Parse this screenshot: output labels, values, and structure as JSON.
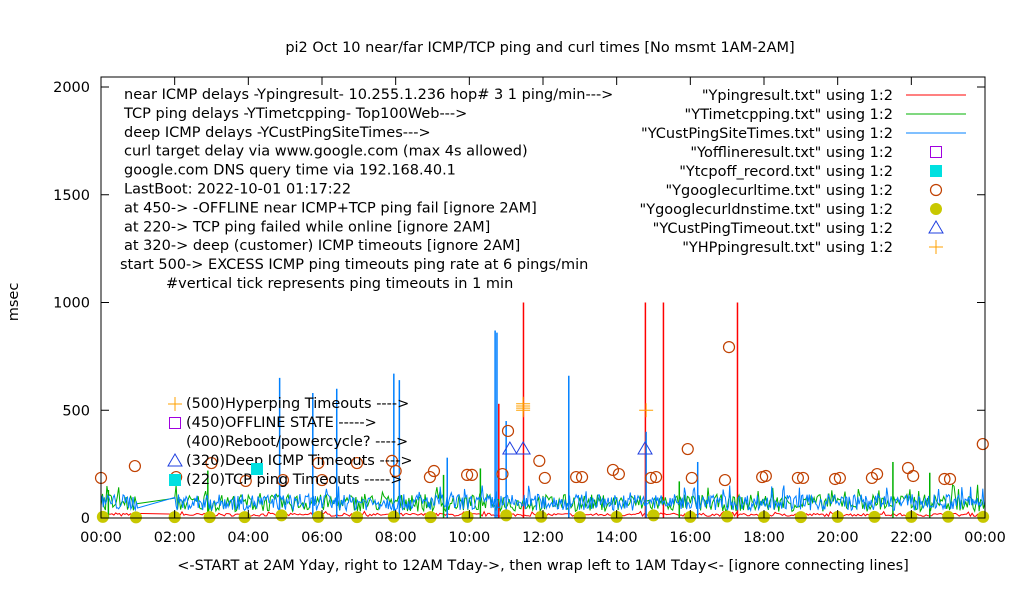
{
  "chart_data": {
    "type": "line",
    "title": "pi2  Oct 10  near/far ICMP/TCP ping and curl times [No msmt 1AM-2AM]",
    "xlabel": "<-START at 2AM Yday, right to 12AM Tday->, then wrap left to 1AM Tday<- [ignore connecting lines]",
    "ylabel": "msec",
    "xlim_hours": [
      0,
      24
    ],
    "ylim": [
      0,
      2000
    ],
    "x_ticks": [
      "00:00",
      "02:00",
      "04:00",
      "06:00",
      "08:00",
      "10:00",
      "12:00",
      "14:00",
      "16:00",
      "18:00",
      "20:00",
      "22:00",
      "00:00"
    ],
    "y_ticks": [
      0,
      500,
      1000,
      1500,
      2000
    ],
    "annotations_top": [
      "near ICMP delays -Ypingresult- 10.255.1.236 hop# 3 1 ping/min--->",
      "TCP ping delays -YTimetcpping- Top100Web--->",
      "deep ICMP delays -YCustPingSiteTimes--->",
      "curl target delay via www.google.com (max 4s allowed)",
      "google.com DNS query time via 192.168.40.1",
      "LastBoot: 2022-10-01 01:17:22",
      "at 450-> -OFFLINE near ICMP+TCP ping fail [ignore 2AM]",
      "at 220-> TCP ping failed while online [ignore 2AM]",
      "at 320-> deep (customer) ICMP timeouts [ignore 2AM]",
      "start 500-> EXCESS ICMP ping timeouts ping rate at 6 pings/min",
      "#vertical tick represents ping timeouts in 1 min"
    ],
    "annotations_low": [
      "(500)Hyperping Timeouts ---->",
      "(450)OFFLINE STATE ----->",
      "(400)Reboot/powercycle? ---->",
      "(320)Deep ICMP Timeouts ---->",
      "(220)TCP ping Timeouts ----->"
    ],
    "legend_position": "top-right",
    "legend": [
      {
        "label": "\"Ypingresult.txt\" using 1:2",
        "style": "line",
        "color": "#ff0000"
      },
      {
        "label": "\"YTimetcpping.txt\" using 1:2",
        "style": "line",
        "color": "#00b000"
      },
      {
        "label": "\"YCustPingSiteTimes.txt\" using 1:2",
        "style": "line",
        "color": "#0080ff"
      },
      {
        "label": "\"Yofflineresult.txt\" using 1:2",
        "style": "square",
        "color": "#a000e0"
      },
      {
        "label": "\"Ytcpoff_record.txt\" using 1:2",
        "style": "filled-square",
        "color": "#00e0e0"
      },
      {
        "label": "\"Ygooglecurltime.txt\" using 1:2",
        "style": "circle",
        "color": "#c04000"
      },
      {
        "label": "\"Ygooglecurldnstime.txt\" using 1:2",
        "style": "filled-circle",
        "color": "#c8c800"
      },
      {
        "label": "\"YCustPingTimeout.txt\" using 1:2",
        "style": "triangle",
        "color": "#2040e0"
      },
      {
        "label": "\"YHPpingresult.txt\" using 1:2",
        "style": "plus",
        "color": "#ffa000"
      }
    ],
    "series": {
      "near_icmp": {
        "baseline_ms": [
          8,
          22
        ],
        "spikes": [
          [
            10.8,
            530
          ],
          [
            11.47,
            1000
          ],
          [
            14.78,
            1000
          ],
          [
            15.27,
            1000
          ],
          [
            17.28,
            1000
          ],
          [
            12.7,
            120
          ]
        ]
      },
      "tcp_ping": {
        "baseline_ms": [
          30,
          110
        ],
        "spikes": [
          [
            0.2,
            130
          ],
          [
            2.9,
            220
          ],
          [
            9.3,
            200
          ],
          [
            10.3,
            230
          ],
          [
            12.7,
            220
          ],
          [
            15.7,
            170
          ],
          [
            21.5,
            260
          ],
          [
            22.5,
            210
          ]
        ]
      },
      "deep_icmp": {
        "baseline_ms": [
          35,
          110
        ],
        "spikes": [
          [
            4.85,
            650
          ],
          [
            6.4,
            600
          ],
          [
            7.95,
            670
          ],
          [
            5.75,
            580
          ],
          [
            8.1,
            640
          ],
          [
            10.7,
            870
          ],
          [
            10.75,
            860
          ],
          [
            12.7,
            660
          ],
          [
            11.0,
            450
          ],
          [
            9.4,
            280
          ],
          [
            14.8,
            400
          ],
          [
            16.2,
            260
          ]
        ]
      },
      "curl": [
        [
          0.0,
          186
        ],
        [
          0.92,
          241
        ],
        [
          2.04,
          190
        ],
        [
          3.0,
          255
        ],
        [
          3.93,
          172
        ],
        [
          4.94,
          176
        ],
        [
          5.9,
          255
        ],
        [
          6.0,
          176
        ],
        [
          6.95,
          255
        ],
        [
          7.9,
          265
        ],
        [
          8.0,
          218
        ],
        [
          8.93,
          190
        ],
        [
          9.04,
          218
        ],
        [
          9.94,
          200
        ],
        [
          10.07,
          200
        ],
        [
          10.9,
          204
        ],
        [
          11.05,
          404
        ],
        [
          11.9,
          265
        ],
        [
          12.05,
          186
        ],
        [
          12.9,
          190
        ],
        [
          13.06,
          190
        ],
        [
          13.9,
          223
        ],
        [
          14.06,
          204
        ],
        [
          14.93,
          186
        ],
        [
          15.07,
          190
        ],
        [
          15.93,
          320
        ],
        [
          16.04,
          186
        ],
        [
          16.94,
          176
        ],
        [
          17.05,
          793
        ],
        [
          17.95,
          190
        ],
        [
          18.05,
          195
        ],
        [
          18.92,
          186
        ],
        [
          19.06,
          186
        ],
        [
          19.93,
          181
        ],
        [
          20.06,
          186
        ],
        [
          20.93,
          186
        ],
        [
          21.07,
          204
        ],
        [
          21.91,
          232
        ],
        [
          22.05,
          195
        ],
        [
          22.9,
          181
        ],
        [
          23.05,
          181
        ],
        [
          23.94,
          343
        ]
      ],
      "dns": [
        [
          0.05,
          5
        ],
        [
          0.95,
          3
        ],
        [
          2.0,
          4
        ],
        [
          2.95,
          4
        ],
        [
          3.9,
          4
        ],
        [
          4.9,
          12
        ],
        [
          5.9,
          5
        ],
        [
          6.95,
          4
        ],
        [
          7.95,
          6
        ],
        [
          8.95,
          4
        ],
        [
          9.95,
          5
        ],
        [
          11.0,
          12
        ],
        [
          11.95,
          6
        ],
        [
          13.0,
          4
        ],
        [
          14.0,
          5
        ],
        [
          15.0,
          12
        ],
        [
          16.0,
          5
        ],
        [
          17.0,
          7
        ],
        [
          18.0,
          5
        ],
        [
          19.0,
          4
        ],
        [
          20.0,
          5
        ],
        [
          21.0,
          5
        ],
        [
          22.0,
          5
        ],
        [
          23.0,
          6
        ],
        [
          23.95,
          5
        ]
      ],
      "deep_timeouts": [
        [
          11.1,
          320
        ],
        [
          11.46,
          320
        ],
        [
          14.77,
          320
        ]
      ],
      "hyperping": [
        [
          11.46,
          500
        ],
        [
          11.46,
          510
        ],
        [
          11.46,
          520
        ],
        [
          11.46,
          530
        ],
        [
          14.8,
          500
        ]
      ],
      "offline": [],
      "tcp_off": []
    }
  }
}
